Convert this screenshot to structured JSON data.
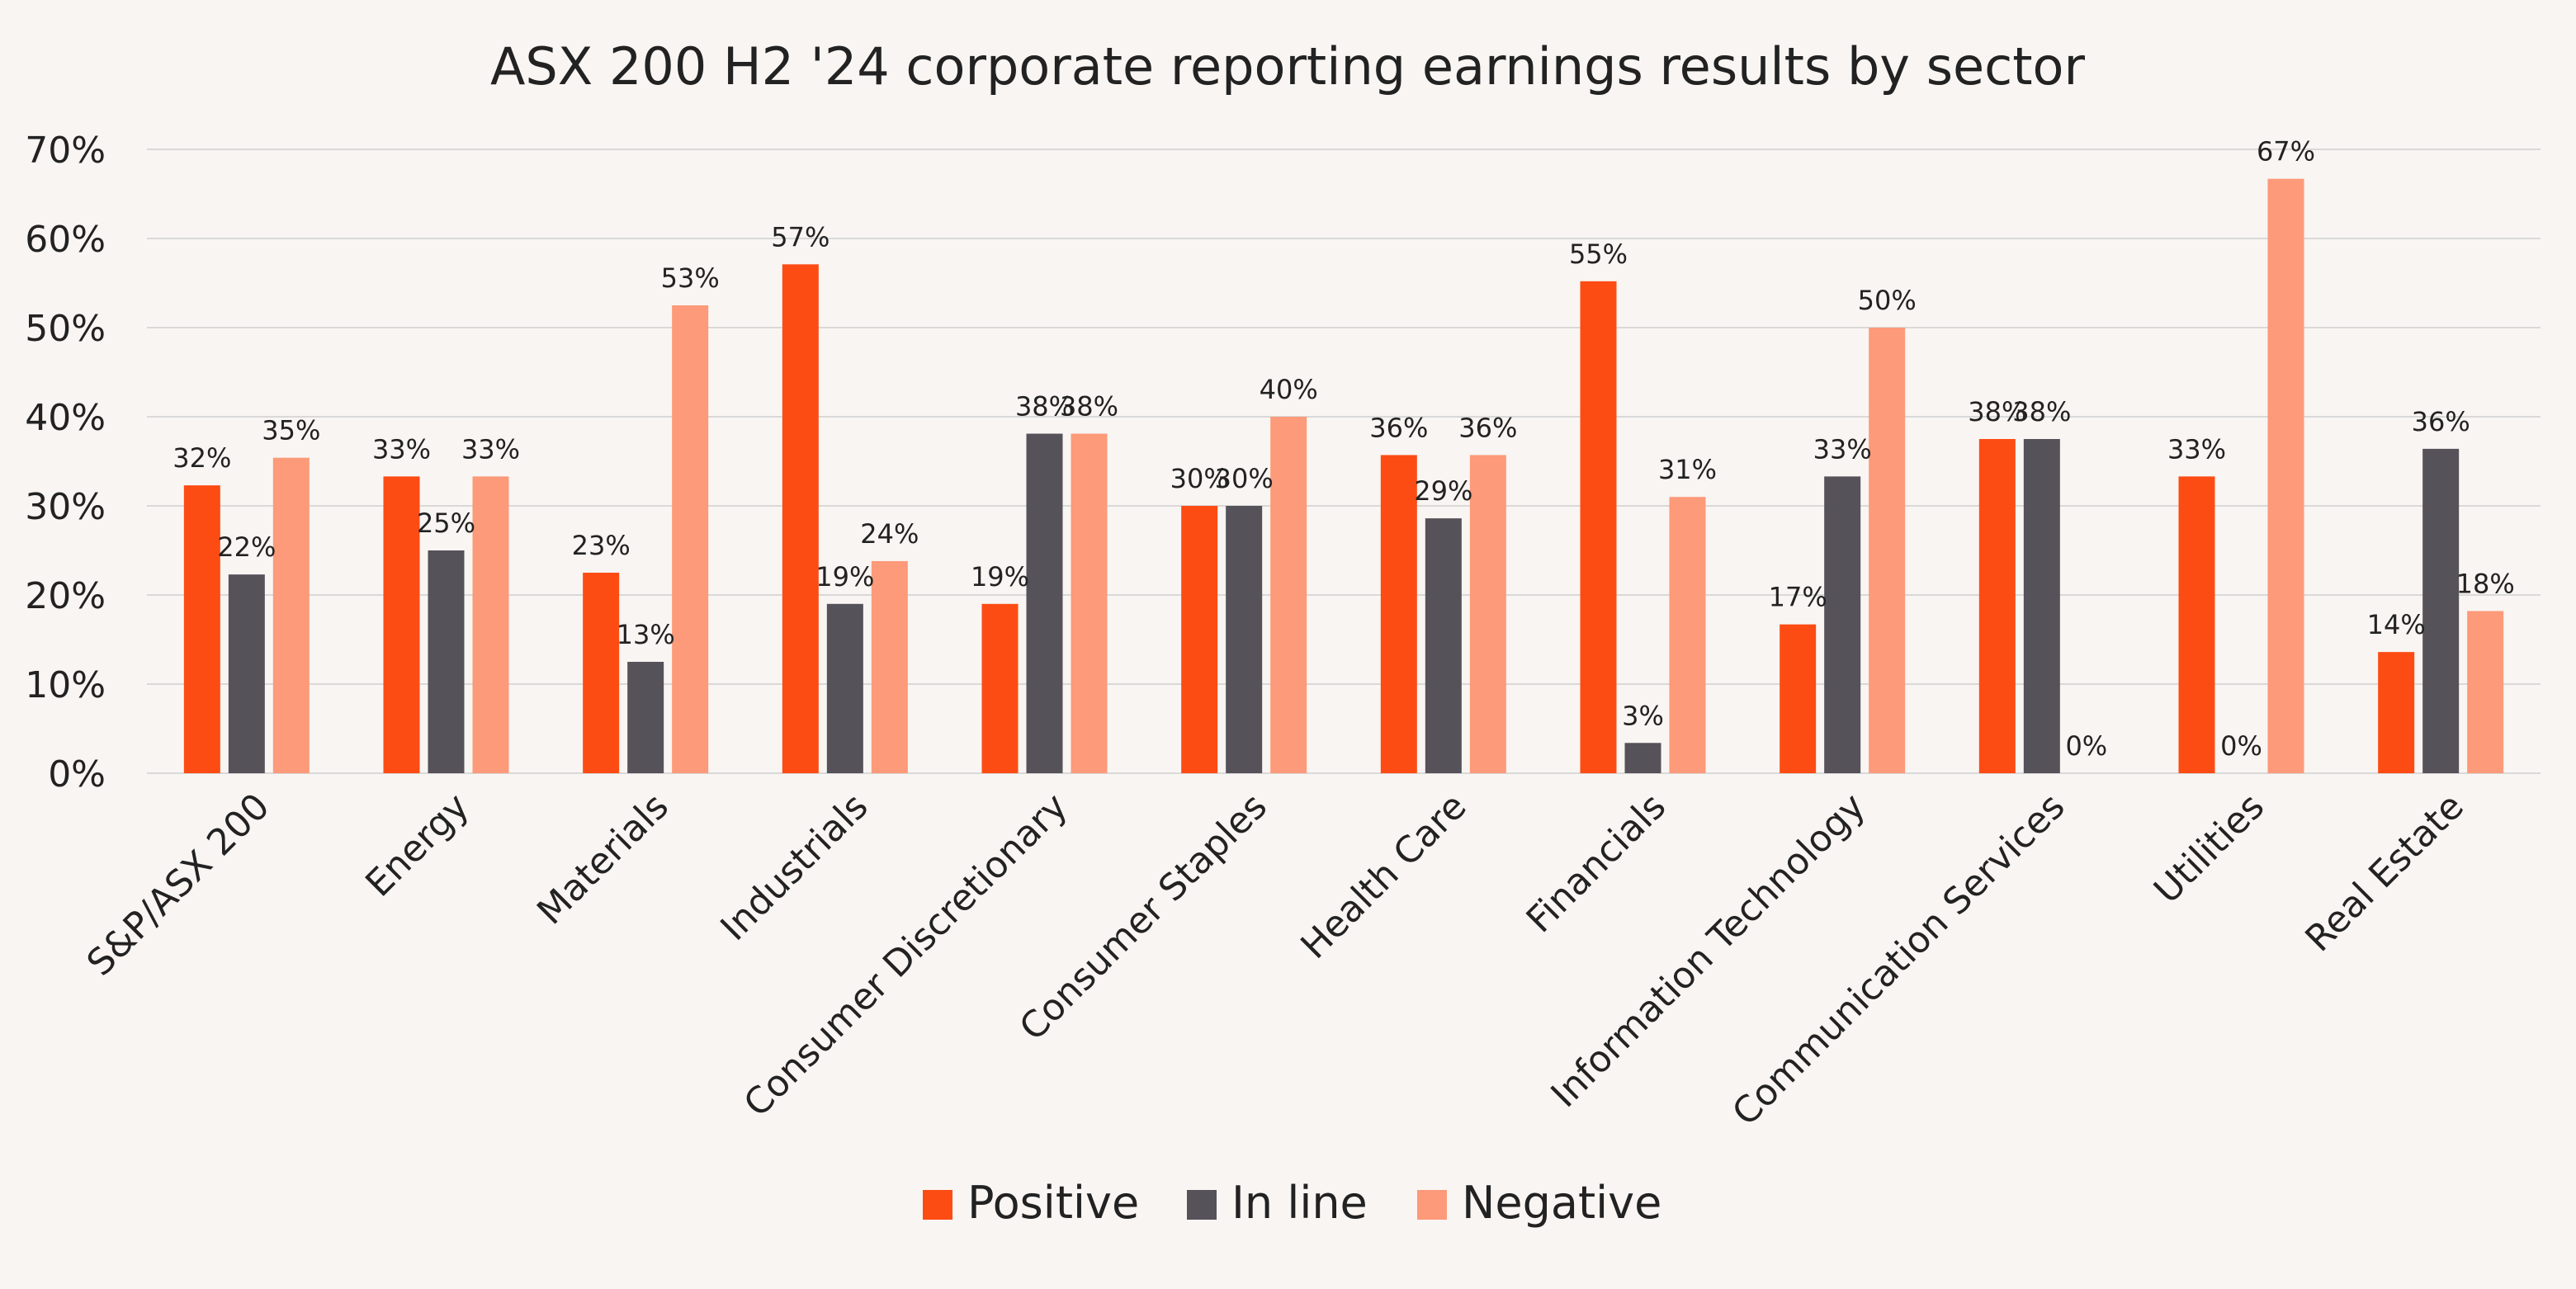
{
  "chart_data": {
    "type": "bar",
    "title": "ASX 200 H2 '24 corporate reporting earnings results by sector",
    "xlabel": "",
    "ylabel": "",
    "ylim": [
      0,
      70
    ],
    "yticks": [
      "0%",
      "10%",
      "20%",
      "30%",
      "40%",
      "50%",
      "60%",
      "70%"
    ],
    "grid": true,
    "legend_position": "bottom",
    "categories": [
      "S&P/ASX 200",
      "Energy",
      "Materials",
      "Industrials",
      "Consumer Discretionary",
      "Consumer Staples",
      "Health Care",
      "Financials",
      "Information Technology",
      "Communication Services",
      "Utilities",
      "Real Estate"
    ],
    "series": [
      {
        "name": "Positive",
        "color": "#fc4c14",
        "values": [
          32.3,
          33.3,
          22.5,
          57.1,
          19.0,
          30.0,
          35.7,
          55.2,
          16.7,
          37.5,
          33.3,
          13.6
        ],
        "labels": [
          "32%",
          "33%",
          "23%",
          "57%",
          "19%",
          "30%",
          "36%",
          "55%",
          "17%",
          "38%",
          "33%",
          "14%"
        ]
      },
      {
        "name": "In line",
        "color": "#55525a",
        "values": [
          22.3,
          25.0,
          12.5,
          19.0,
          38.1,
          30.0,
          28.6,
          3.4,
          33.3,
          37.5,
          0,
          36.4
        ],
        "labels": [
          "22%",
          "25%",
          "13%",
          "19%",
          "38%",
          "30%",
          "29%",
          "3%",
          "33%",
          "38%",
          "0%",
          "36%"
        ]
      },
      {
        "name": "Negative",
        "color": "#fc9a79",
        "values": [
          35.4,
          33.3,
          52.5,
          23.8,
          38.1,
          40.0,
          35.7,
          31.0,
          50.0,
          0,
          66.7,
          18.2
        ],
        "labels": [
          "35%",
          "33%",
          "53%",
          "24%",
          "38%",
          "40%",
          "36%",
          "31%",
          "50%",
          "0%",
          "67%",
          "18%"
        ]
      }
    ]
  },
  "style": {
    "background": "#f9f5f2",
    "grid_color": "#d9d9d9",
    "text_color": "#222222"
  }
}
